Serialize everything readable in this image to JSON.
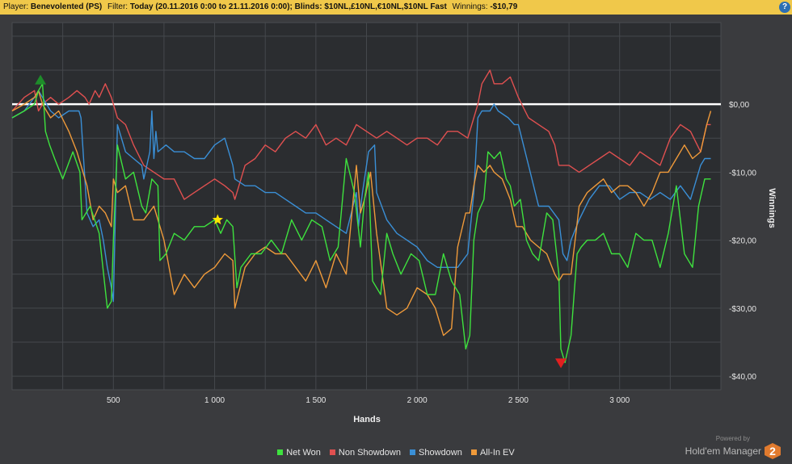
{
  "header": {
    "player_label": "Player:",
    "player_value": "Benevolented (PS)",
    "filter_label": "Filter:",
    "filter_value": "Today (20.11.2016 0:00 to 21.11.2016 0:00); Blinds: $10NL,£10NL,€10NL,$10NL Fast",
    "winnings_label": "Winnings:",
    "winnings_value": "-$10,79",
    "help_label": "?"
  },
  "branding": {
    "powered_by": "Powered by",
    "product": "Hold'em Manager",
    "logo_text": "2"
  },
  "chart_data": {
    "type": "line",
    "xlabel": "Hands",
    "ylabel": "Winnings",
    "xlim": [
      0,
      3500
    ],
    "ylim": [
      -42,
      12
    ],
    "x_ticks": [
      500,
      1000,
      1500,
      2000,
      2500,
      3000
    ],
    "x_tick_labels": [
      "500",
      "1 000",
      "1 500",
      "2 000",
      "2 500",
      "3 000"
    ],
    "y_ticks": [
      0,
      -10,
      -20,
      -30,
      -40
    ],
    "y_tick_labels": [
      "$0,00",
      "-$10,00",
      "-$20,00",
      "-$30,00",
      "-$40,00"
    ],
    "grid": true,
    "legend_position": "bottom",
    "series": [
      {
        "name": "Net Won",
        "color": "#3ee23e",
        "x": [
          0,
          60,
          110,
          130,
          150,
          165,
          185,
          210,
          250,
          300,
          335,
          345,
          385,
          430,
          470,
          490,
          500,
          520,
          560,
          600,
          640,
          660,
          690,
          720,
          730,
          760,
          800,
          850,
          900,
          950,
          1000,
          1030,
          1060,
          1090,
          1110,
          1130,
          1180,
          1230,
          1280,
          1330,
          1380,
          1430,
          1480,
          1530,
          1570,
          1610,
          1650,
          1690,
          1720,
          1740,
          1760,
          1780,
          1820,
          1850,
          1880,
          1920,
          1970,
          2010,
          2050,
          2090,
          2130,
          2170,
          2210,
          2240,
          2260,
          2280,
          2300,
          2330,
          2350,
          2380,
          2410,
          2440,
          2460,
          2480,
          2510,
          2540,
          2570,
          2600,
          2640,
          2670,
          2700,
          2710,
          2730,
          2760,
          2790,
          2810,
          2840,
          2880,
          2920,
          2960,
          3000,
          3040,
          3080,
          3120,
          3160,
          3200,
          3240,
          3280,
          3320,
          3360,
          3390,
          3420,
          3450
        ],
        "y": [
          -2,
          -1,
          0,
          2,
          3,
          -4,
          -6,
          -8,
          -11,
          -7,
          -10,
          -17,
          -15,
          -19,
          -30,
          -29,
          -20,
          -6,
          -11,
          -10,
          -15,
          -16,
          -11,
          -12,
          -23,
          -22,
          -19,
          -20,
          -18,
          -18,
          -17,
          -19,
          -17,
          -18,
          -27,
          -24,
          -22,
          -22,
          -20,
          -22,
          -17,
          -20,
          -17,
          -18,
          -23,
          -21,
          -8,
          -13,
          -21,
          -14,
          -10,
          -26,
          -28,
          -19,
          -22,
          -25,
          -22,
          -23,
          -28,
          -28,
          -22,
          -26,
          -28,
          -36,
          -34,
          -20,
          -16,
          -14,
          -7,
          -8,
          -7,
          -11,
          -12,
          -15,
          -14,
          -20,
          -22,
          -23,
          -16,
          -17,
          -25,
          -36,
          -38,
          -34,
          -22,
          -21,
          -20,
          -20,
          -19,
          -22,
          -22,
          -24,
          -19,
          -20,
          -20,
          -24,
          -19,
          -12,
          -22,
          -24,
          -15,
          -11,
          -11
        ]
      },
      {
        "name": "Non Showdown",
        "color": "#e05050",
        "x": [
          0,
          60,
          110,
          130,
          150,
          190,
          230,
          280,
          320,
          360,
          380,
          410,
          430,
          460,
          490,
          520,
          560,
          600,
          650,
          700,
          750,
          800,
          850,
          900,
          950,
          1000,
          1050,
          1090,
          1100,
          1150,
          1200,
          1250,
          1300,
          1350,
          1400,
          1450,
          1500,
          1550,
          1600,
          1650,
          1700,
          1750,
          1800,
          1850,
          1900,
          1950,
          2000,
          2050,
          2100,
          2150,
          2200,
          2250,
          2280,
          2300,
          2320,
          2340,
          2360,
          2380,
          2420,
          2460,
          2500,
          2550,
          2600,
          2650,
          2680,
          2700,
          2750,
          2800,
          2850,
          2900,
          2950,
          3000,
          3050,
          3100,
          3150,
          3200,
          3250,
          3300,
          3350,
          3400,
          3430,
          3450
        ],
        "y": [
          -1,
          1,
          2,
          -1,
          0,
          1,
          0,
          1,
          2,
          1,
          0,
          2,
          1,
          3,
          1,
          -2,
          -3,
          -6,
          -9,
          -10,
          -11,
          -11,
          -14,
          -13,
          -12,
          -11,
          -12,
          -13,
          -14,
          -9,
          -8,
          -6,
          -7,
          -5,
          -4,
          -5,
          -3,
          -6,
          -5,
          -6,
          -3,
          -4,
          -5,
          -4,
          -5,
          -6,
          -5,
          -5,
          -6,
          -4,
          -4,
          -5,
          -2,
          0,
          3,
          4,
          5,
          3,
          3,
          4,
          1,
          -2,
          -3,
          -4,
          -6,
          -9,
          -9,
          -10,
          -9,
          -8,
          -7,
          -8,
          -9,
          -7,
          -8,
          -9,
          -5,
          -3,
          -4,
          -7,
          -3,
          -3
        ]
      },
      {
        "name": "Showdown",
        "color": "#3a8fd6",
        "x": [
          0,
          60,
          110,
          130,
          150,
          190,
          230,
          280,
          330,
          340,
          370,
          400,
          430,
          450,
          470,
          490,
          500,
          520,
          560,
          600,
          640,
          650,
          680,
          690,
          700,
          710,
          720,
          760,
          800,
          850,
          900,
          950,
          1000,
          1050,
          1090,
          1100,
          1150,
          1200,
          1250,
          1300,
          1350,
          1400,
          1450,
          1500,
          1550,
          1600,
          1650,
          1700,
          1710,
          1730,
          1760,
          1790,
          1800,
          1850,
          1900,
          1950,
          2000,
          2050,
          2100,
          2150,
          2200,
          2250,
          2280,
          2300,
          2320,
          2360,
          2380,
          2400,
          2450,
          2480,
          2500,
          2550,
          2600,
          2650,
          2700,
          2720,
          2740,
          2760,
          2800,
          2850,
          2900,
          2950,
          3000,
          3050,
          3100,
          3150,
          3200,
          3250,
          3300,
          3350,
          3400,
          3420,
          3450
        ],
        "y": [
          -2,
          -1,
          1,
          2,
          1,
          -1,
          -2,
          -1,
          -1,
          -2,
          -16,
          -18,
          -17,
          -20,
          -24,
          -27,
          -29,
          -3,
          -7,
          -8,
          -9,
          -11,
          -7,
          -1,
          -8,
          -4,
          -7,
          -6,
          -7,
          -7,
          -8,
          -8,
          -6,
          -5,
          -9,
          -11,
          -12,
          -12,
          -13,
          -13,
          -14,
          -15,
          -16,
          -16,
          -17,
          -18,
          -19,
          -13,
          -18,
          -13,
          -7,
          -6,
          -13,
          -17,
          -19,
          -20,
          -21,
          -23,
          -24,
          -24,
          -24,
          -22,
          -13,
          -2,
          -1,
          -1,
          0,
          -1,
          -2,
          -3,
          -3,
          -9,
          -15,
          -15,
          -17,
          -22,
          -23,
          -20,
          -17,
          -14,
          -12,
          -12,
          -14,
          -13,
          -13,
          -14,
          -13,
          -14,
          -12,
          -14,
          -9,
          -8,
          -8
        ]
      },
      {
        "name": "All-In EV",
        "color": "#ef9a3a",
        "x": [
          0,
          60,
          110,
          130,
          150,
          190,
          230,
          280,
          320,
          340,
          370,
          400,
          430,
          460,
          490,
          500,
          520,
          560,
          600,
          650,
          700,
          750,
          800,
          850,
          900,
          950,
          1000,
          1050,
          1090,
          1100,
          1150,
          1200,
          1250,
          1300,
          1350,
          1400,
          1450,
          1500,
          1550,
          1600,
          1650,
          1700,
          1720,
          1740,
          1770,
          1800,
          1850,
          1900,
          1950,
          2000,
          2050,
          2090,
          2130,
          2170,
          2200,
          2240,
          2260,
          2280,
          2300,
          2330,
          2360,
          2380,
          2420,
          2460,
          2490,
          2520,
          2560,
          2600,
          2640,
          2680,
          2700,
          2720,
          2760,
          2800,
          2840,
          2880,
          2920,
          2960,
          3000,
          3040,
          3080,
          3120,
          3160,
          3200,
          3240,
          3280,
          3320,
          3360,
          3400,
          3430,
          3450
        ],
        "y": [
          -1,
          0,
          1,
          2,
          0,
          -2,
          -1,
          -4,
          -7,
          -9,
          -12,
          -17,
          -15,
          -16,
          -18,
          -11,
          -13,
          -12,
          -17,
          -17,
          -15,
          -20,
          -28,
          -25,
          -27,
          -25,
          -24,
          -22,
          -23,
          -30,
          -24,
          -22,
          -21,
          -22,
          -22,
          -24,
          -26,
          -23,
          -27,
          -22,
          -25,
          -9,
          -16,
          -14,
          -10,
          -19,
          -30,
          -31,
          -30,
          -27,
          -28,
          -30,
          -34,
          -33,
          -21,
          -16,
          -16,
          -12,
          -9,
          -10,
          -9,
          -10,
          -11,
          -14,
          -18,
          -18,
          -20,
          -21,
          -22,
          -25,
          -26,
          -25,
          -25,
          -15,
          -13,
          -12,
          -11,
          -13,
          -12,
          -12,
          -13,
          -15,
          -13,
          -10,
          -10,
          -8,
          -6,
          -8,
          -7,
          -3,
          -1
        ]
      }
    ],
    "markers": [
      {
        "shape": "triangle-up",
        "color": "#1e8c2a",
        "x": 140,
        "y": 3.5
      },
      {
        "shape": "star",
        "color": "#ffe600",
        "x": 1015,
        "y": -17
      },
      {
        "shape": "triangle-down",
        "color": "#e02020",
        "x": 2710,
        "y": -38
      }
    ],
    "zero_line_color": "#ffffff"
  }
}
